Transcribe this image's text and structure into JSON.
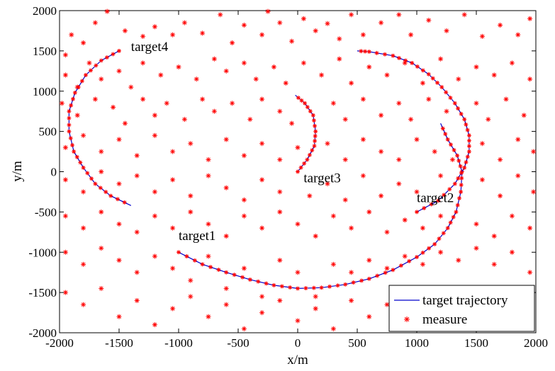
{
  "chart_data": {
    "type": "scatter",
    "xlabel": "x/m",
    "ylabel": "y/m",
    "xlim": [
      -2000,
      2000
    ],
    "ylim": [
      -2000,
      2000
    ],
    "xticks": [
      -2000,
      -1500,
      -1000,
      -500,
      0,
      500,
      1000,
      1500,
      2000
    ],
    "yticks": [
      -2000,
      -1500,
      -1000,
      -500,
      0,
      500,
      1000,
      1500,
      2000
    ],
    "grid": false,
    "legend_position": "bottom-right",
    "colors": {
      "trajectory": "#0000cc",
      "measure": "#ff0000"
    },
    "legend": [
      {
        "label": "target trajectory",
        "marker": "line"
      },
      {
        "label": "measure",
        "marker": "star"
      }
    ],
    "series": [
      {
        "name": "target trajectory",
        "type": "line",
        "tracks": [
          {
            "label": "target1",
            "label_at": [
              -1000,
              -850
            ],
            "points": [
              [
                -1000,
                -1000
              ],
              [
                -800,
                -1150
              ],
              [
                -600,
                -1250
              ],
              [
                -400,
                -1340
              ],
              [
                -200,
                -1410
              ],
              [
                0,
                -1450
              ],
              [
                200,
                -1440
              ],
              [
                400,
                -1400
              ],
              [
                600,
                -1330
              ],
              [
                800,
                -1220
              ],
              [
                1000,
                -1060
              ],
              [
                1150,
                -900
              ],
              [
                1260,
                -700
              ],
              [
                1330,
                -500
              ],
              [
                1370,
                -250
              ],
              [
                1380,
                0
              ],
              [
                1340,
                200
              ],
              [
                1260,
                400
              ],
              [
                1200,
                600
              ]
            ]
          },
          {
            "label": "target2",
            "label_at": [
              1000,
              -380
            ],
            "points": [
              [
                1000,
                -500
              ],
              [
                1180,
                -360
              ],
              [
                1320,
                -150
              ],
              [
                1400,
                50
              ],
              [
                1440,
                250
              ],
              [
                1440,
                450
              ],
              [
                1400,
                650
              ],
              [
                1320,
                850
              ],
              [
                1210,
                1050
              ],
              [
                1100,
                1210
              ],
              [
                960,
                1350
              ],
              [
                800,
                1440
              ],
              [
                600,
                1490
              ],
              [
                500,
                1500
              ]
            ]
          },
          {
            "label": "target3",
            "label_at": [
              50,
              -130
            ],
            "points": [
              [
                0,
                0
              ],
              [
                80,
                150
              ],
              [
                140,
                320
              ],
              [
                150,
                500
              ],
              [
                130,
                700
              ],
              [
                60,
                850
              ],
              [
                -20,
                950
              ]
            ]
          },
          {
            "label": "target4",
            "label_at": [
              -1400,
              1500
            ],
            "points": [
              [
                -1500,
                1500
              ],
              [
                -1650,
                1380
              ],
              [
                -1780,
                1200
              ],
              [
                -1870,
                980
              ],
              [
                -1920,
                750
              ],
              [
                -1920,
                500
              ],
              [
                -1880,
                250
              ],
              [
                -1800,
                50
              ],
              [
                -1700,
                -150
              ],
              [
                -1570,
                -300
              ],
              [
                -1400,
                -420
              ]
            ]
          }
        ]
      },
      {
        "name": "measure",
        "type": "scatter",
        "marker": "*",
        "points": [
          [
            -1950,
            1450
          ],
          [
            -1900,
            1700
          ],
          [
            -1800,
            1600
          ],
          [
            -1700,
            1850
          ],
          [
            -1600,
            1990
          ],
          [
            -1450,
            1750
          ],
          [
            -1300,
            1680
          ],
          [
            -1200,
            1800
          ],
          [
            -1050,
            1700
          ],
          [
            -950,
            1850
          ],
          [
            -800,
            1720
          ],
          [
            -650,
            1950
          ],
          [
            -550,
            1600
          ],
          [
            -450,
            1820
          ],
          [
            -300,
            1700
          ],
          [
            -250,
            1990
          ],
          [
            -150,
            1850
          ],
          [
            -50,
            1620
          ],
          [
            50,
            1900
          ],
          [
            150,
            1750
          ],
          [
            250,
            1840
          ],
          [
            350,
            1650
          ],
          [
            450,
            1950
          ],
          [
            550,
            1700
          ],
          [
            700,
            1850
          ],
          [
            850,
            1950
          ],
          [
            950,
            1700
          ],
          [
            1100,
            1880
          ],
          [
            1250,
            1750
          ],
          [
            1400,
            1950
          ],
          [
            1550,
            1680
          ],
          [
            1700,
            1820
          ],
          [
            1850,
            1700
          ],
          [
            1950,
            1900
          ],
          [
            -1950,
            1200
          ],
          [
            -1850,
            1050
          ],
          [
            -1750,
            1350
          ],
          [
            -1650,
            1150
          ],
          [
            -1500,
            1250
          ],
          [
            -1400,
            1050
          ],
          [
            -1300,
            1350
          ],
          [
            -1150,
            1200
          ],
          [
            -1000,
            1300
          ],
          [
            -850,
            1150
          ],
          [
            -700,
            1400
          ],
          [
            -600,
            1250
          ],
          [
            -450,
            1350
          ],
          [
            -350,
            1150
          ],
          [
            -200,
            1300
          ],
          [
            -100,
            1100
          ],
          [
            50,
            1350
          ],
          [
            200,
            1200
          ],
          [
            350,
            1400
          ],
          [
            450,
            1100
          ],
          [
            600,
            1300
          ],
          [
            750,
            1200
          ],
          [
            900,
            1350
          ],
          [
            1050,
            1100
          ],
          [
            1200,
            1400
          ],
          [
            1350,
            1150
          ],
          [
            1500,
            1300
          ],
          [
            1650,
            1200
          ],
          [
            1800,
            1350
          ],
          [
            1950,
            1150
          ],
          [
            -1980,
            850
          ],
          [
            -1850,
            700
          ],
          [
            -1700,
            900
          ],
          [
            -1550,
            800
          ],
          [
            -1450,
            600
          ],
          [
            -1300,
            900
          ],
          [
            -1200,
            700
          ],
          [
            -1100,
            850
          ],
          [
            -950,
            650
          ],
          [
            -800,
            900
          ],
          [
            -700,
            750
          ],
          [
            -550,
            850
          ],
          [
            -400,
            650
          ],
          [
            -300,
            900
          ],
          [
            -150,
            750
          ],
          [
            -50,
            600
          ],
          [
            300,
            850
          ],
          [
            400,
            650
          ],
          [
            550,
            900
          ],
          [
            700,
            700
          ],
          [
            850,
            850
          ],
          [
            950,
            650
          ],
          [
            1100,
            900
          ],
          [
            1250,
            750
          ],
          [
            1500,
            850
          ],
          [
            1600,
            650
          ],
          [
            1750,
            900
          ],
          [
            1900,
            700
          ],
          [
            -1950,
            300
          ],
          [
            -1800,
            450
          ],
          [
            -1650,
            250
          ],
          [
            -1500,
            400
          ],
          [
            -1350,
            200
          ],
          [
            -1200,
            450
          ],
          [
            -1050,
            250
          ],
          [
            -900,
            350
          ],
          [
            -750,
            150
          ],
          [
            -600,
            400
          ],
          [
            -450,
            200
          ],
          [
            -300,
            350
          ],
          [
            -150,
            150
          ],
          [
            0,
            300
          ],
          [
            250,
            350
          ],
          [
            400,
            150
          ],
          [
            550,
            400
          ],
          [
            700,
            250
          ],
          [
            850,
            150
          ],
          [
            1000,
            400
          ],
          [
            1150,
            250
          ],
          [
            1300,
            150
          ],
          [
            1550,
            350
          ],
          [
            1700,
            150
          ],
          [
            1850,
            400
          ],
          [
            1980,
            250
          ],
          [
            -1950,
            -100
          ],
          [
            -1800,
            -250
          ],
          [
            -1650,
            0
          ],
          [
            -1500,
            -150
          ],
          [
            -1350,
            -50
          ],
          [
            -1200,
            -250
          ],
          [
            -1050,
            -100
          ],
          [
            -900,
            -300
          ],
          [
            -750,
            -50
          ],
          [
            -600,
            -200
          ],
          [
            -450,
            -350
          ],
          [
            -300,
            -100
          ],
          [
            -150,
            -250
          ],
          [
            100,
            -300
          ],
          [
            250,
            -150
          ],
          [
            400,
            -350
          ],
          [
            550,
            -50
          ],
          [
            700,
            -300
          ],
          [
            850,
            -150
          ],
          [
            1000,
            -250
          ],
          [
            1200,
            -50
          ],
          [
            1550,
            -100
          ],
          [
            1700,
            -300
          ],
          [
            1850,
            -50
          ],
          [
            1980,
            -250
          ],
          [
            -1950,
            -550
          ],
          [
            -1800,
            -700
          ],
          [
            -1650,
            -500
          ],
          [
            -1500,
            -650
          ],
          [
            -1350,
            -750
          ],
          [
            -1200,
            -550
          ],
          [
            -1050,
            -700
          ],
          [
            -900,
            -500
          ],
          [
            -750,
            -650
          ],
          [
            -600,
            -800
          ],
          [
            -450,
            -550
          ],
          [
            -300,
            -700
          ],
          [
            -150,
            -500
          ],
          [
            0,
            -650
          ],
          [
            150,
            -800
          ],
          [
            300,
            -550
          ],
          [
            450,
            -700
          ],
          [
            600,
            -500
          ],
          [
            750,
            -750
          ],
          [
            900,
            -600
          ],
          [
            1050,
            -700
          ],
          [
            1200,
            -550
          ],
          [
            1500,
            -650
          ],
          [
            1650,
            -800
          ],
          [
            1800,
            -550
          ],
          [
            1950,
            -700
          ],
          [
            -1950,
            -1000
          ],
          [
            -1800,
            -1150
          ],
          [
            -1650,
            -950
          ],
          [
            -1500,
            -1100
          ],
          [
            -1350,
            -1250
          ],
          [
            -1200,
            -1050
          ],
          [
            -1050,
            -1200
          ],
          [
            -900,
            -1350
          ],
          [
            -750,
            -1050
          ],
          [
            -600,
            -1450
          ],
          [
            -450,
            -1200
          ],
          [
            -300,
            -1550
          ],
          [
            -150,
            -1100
          ],
          [
            0,
            -1250
          ],
          [
            150,
            -1550
          ],
          [
            300,
            -1150
          ],
          [
            450,
            -1250
          ],
          [
            600,
            -1100
          ],
          [
            750,
            -1200
          ],
          [
            900,
            -1050
          ],
          [
            1050,
            -1150
          ],
          [
            1200,
            -1000
          ],
          [
            1350,
            -1100
          ],
          [
            1500,
            -950
          ],
          [
            1650,
            -1150
          ],
          [
            1800,
            -1000
          ],
          [
            1950,
            -1250
          ],
          [
            -1950,
            -1500
          ],
          [
            -1800,
            -1650
          ],
          [
            -1650,
            -1450
          ],
          [
            -1500,
            -1800
          ],
          [
            -1350,
            -1600
          ],
          [
            -1200,
            -1900
          ],
          [
            -1050,
            -1700
          ],
          [
            -900,
            -1550
          ],
          [
            -750,
            -1800
          ],
          [
            -600,
            -1650
          ],
          [
            -450,
            -1950
          ],
          [
            -300,
            -1750
          ],
          [
            -150,
            -1600
          ],
          [
            0,
            -1850
          ],
          [
            150,
            -1700
          ],
          [
            300,
            -1950
          ],
          [
            450,
            -1600
          ],
          [
            600,
            -1800
          ],
          [
            750,
            -1650
          ],
          [
            900,
            -1900
          ],
          [
            1050,
            -1700
          ],
          [
            1200,
            -1850
          ],
          [
            1350,
            -1600
          ],
          [
            1500,
            -1950
          ],
          [
            1650,
            -1750
          ],
          [
            1800,
            -1850
          ],
          [
            1950,
            -1650
          ]
        ]
      }
    ]
  }
}
